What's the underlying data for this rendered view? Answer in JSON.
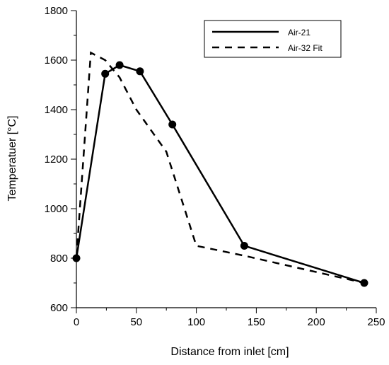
{
  "chart_data": {
    "type": "line",
    "xlabel": "Distance from inlet [cm]",
    "ylabel": "Temperatuer [°C]",
    "xlim": [
      0,
      250
    ],
    "ylim": [
      600,
      1800
    ],
    "xticks": [
      0,
      50,
      100,
      150,
      200,
      250
    ],
    "xtick_labels": [
      "0",
      "50",
      "100",
      "150",
      "200",
      "250"
    ],
    "yticks": [
      600,
      800,
      1000,
      1200,
      1400,
      1600,
      1800
    ],
    "ytick_labels": [
      "600",
      "800",
      "1000",
      "1200",
      "1400",
      "1600",
      "1800"
    ],
    "grid": false,
    "legend_position": "top-right",
    "series": [
      {
        "name": "Air-21",
        "style": "solid",
        "markers": true,
        "color": "#000000",
        "x": [
          0,
          24,
          36,
          53,
          80,
          140,
          240
        ],
        "y": [
          800,
          1545,
          1580,
          1555,
          1340,
          850,
          700
        ]
      },
      {
        "name": "Air-32 Fit",
        "style": "dashed",
        "markers": false,
        "color": "#000000",
        "x": [
          0,
          12,
          24,
          36,
          50,
          75,
          100,
          140,
          240
        ],
        "y": [
          800,
          1630,
          1600,
          1530,
          1400,
          1230,
          850,
          810,
          700
        ]
      }
    ]
  }
}
